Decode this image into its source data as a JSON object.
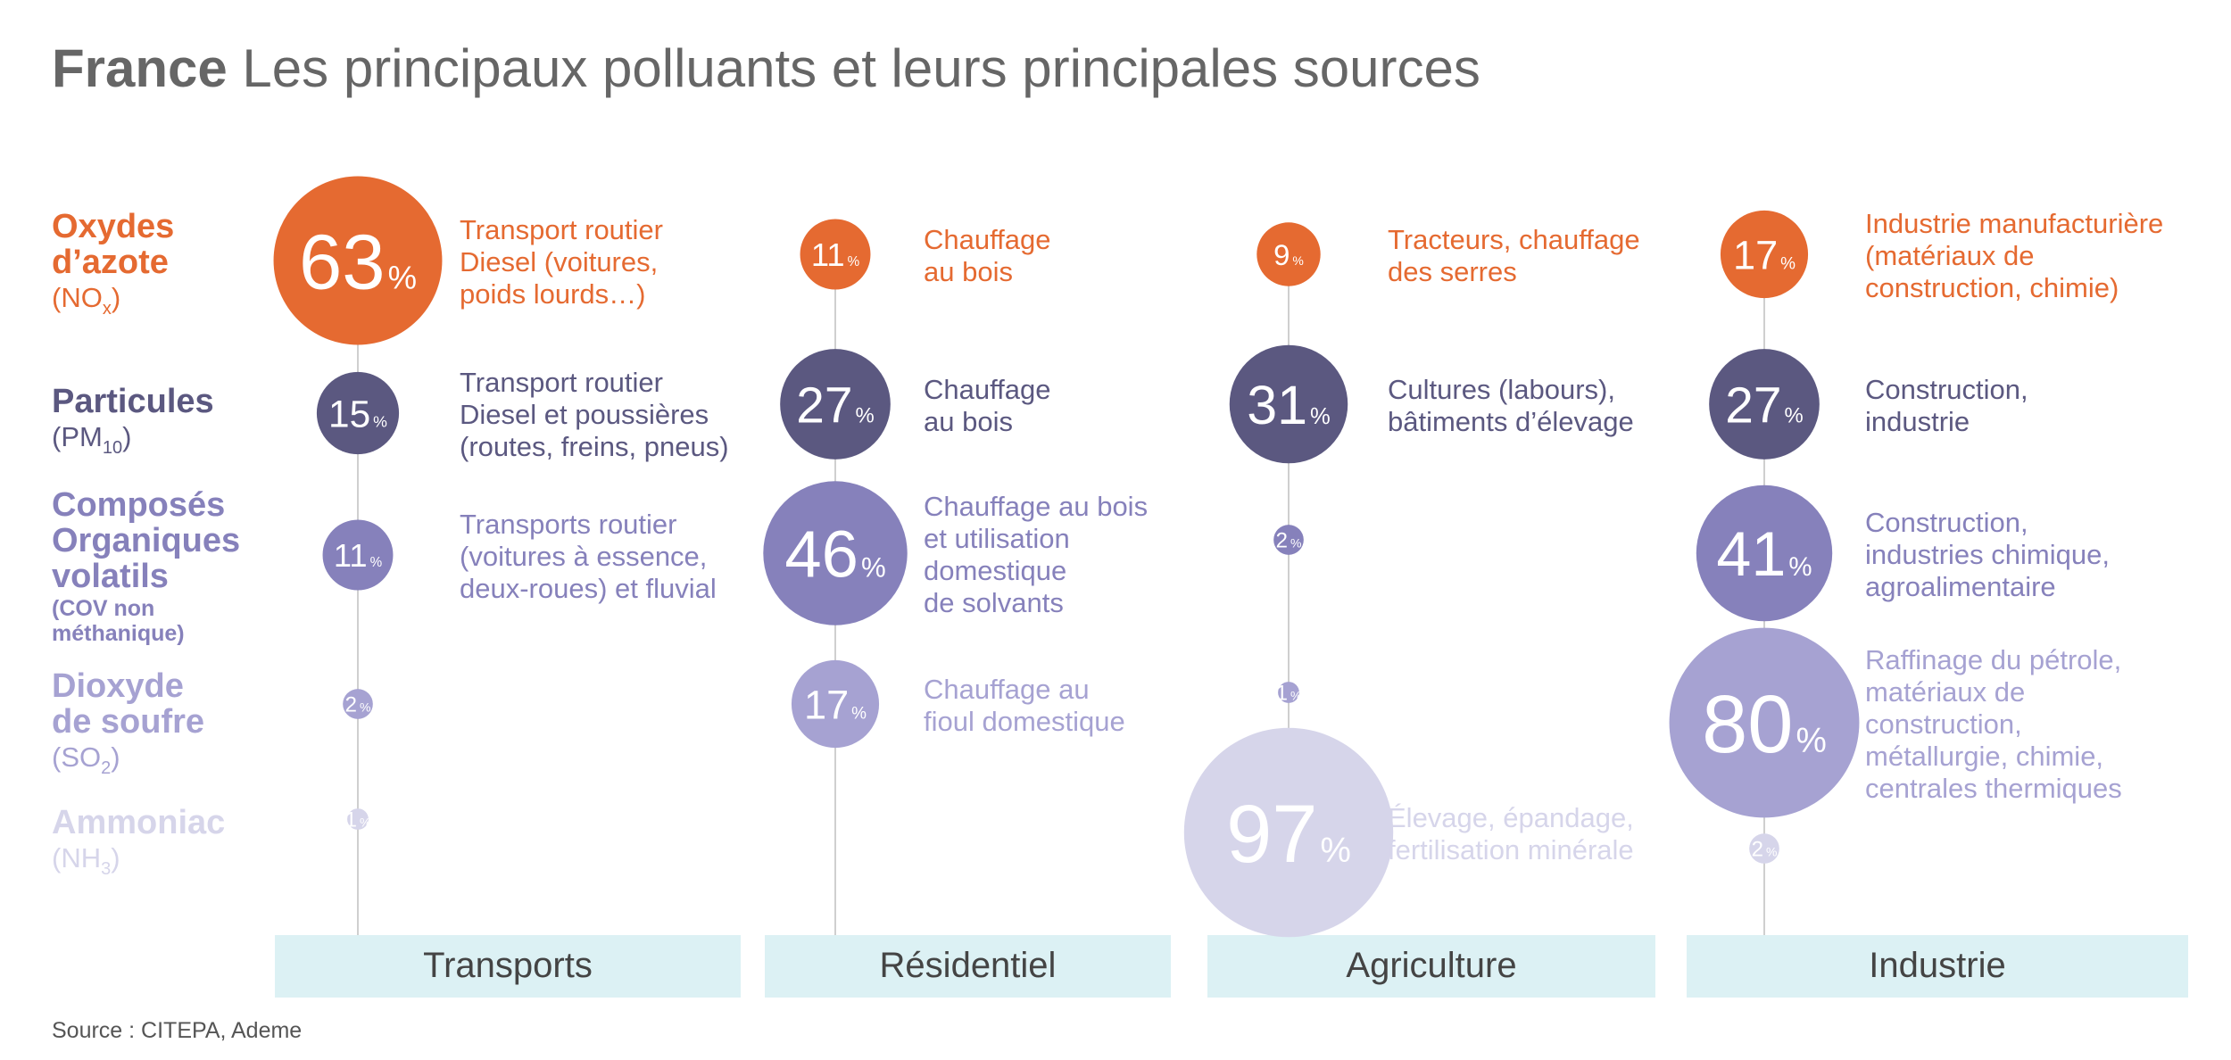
{
  "chart_data": {
    "type": "bubble",
    "title_bold": "France",
    "title": "Les principaux polluants et leurs principales sources",
    "source": "Source : CITEPA, Ademe",
    "colors": {
      "nox": "#e56a31",
      "pm": "#5b5880",
      "cov": "#8681bb",
      "so2": "#a6a2d2",
      "nh3": "#d6d5ea",
      "band": "#dcf1f4",
      "title_gray": "#666666",
      "line": "#cfcfcf"
    },
    "pollutants": [
      {
        "key": "nox",
        "label": [
          "Oxydes",
          "d’azote"
        ],
        "formula": "(NO",
        "sub": "x",
        "formula_end": ")"
      },
      {
        "key": "pm",
        "label": [
          "Particules"
        ],
        "formula": "(PM",
        "sub": "10",
        "formula_end": ")"
      },
      {
        "key": "cov",
        "label": [
          "Composés",
          "Organiques",
          "volatils"
        ],
        "note": [
          "(COV non",
          "méthanique)"
        ]
      },
      {
        "key": "so2",
        "label": [
          "Dioxyde",
          "de soufre"
        ],
        "formula": "(SO",
        "sub": "2",
        "formula_end": ")"
      },
      {
        "key": "nh3",
        "label": [
          "Ammoniac"
        ],
        "formula": "(NH",
        "sub": "3",
        "formula_end": ")"
      }
    ],
    "categories": [
      "Transports",
      "Résidentiel",
      "Agriculture",
      "Industrie"
    ],
    "sectors": [
      {
        "name": "Transports",
        "values": [
          {
            "pollutant": "nox",
            "value": 63,
            "desc": [
              "Transport routier",
              "Diesel (voitures,",
              "poids lourds…)"
            ]
          },
          {
            "pollutant": "pm",
            "value": 15,
            "desc": [
              "Transport routier",
              "Diesel et poussières",
              "(routes, freins, pneus)"
            ]
          },
          {
            "pollutant": "cov",
            "value": 11,
            "desc": [
              "Transports routier",
              "(voitures à essence,",
              "deux-roues) et fluvial"
            ]
          },
          {
            "pollutant": "so2",
            "value": 2,
            "desc": []
          },
          {
            "pollutant": "nh3",
            "value": 1,
            "desc": []
          }
        ]
      },
      {
        "name": "Résidentiel",
        "values": [
          {
            "pollutant": "nox",
            "value": 11,
            "desc": [
              "Chauffage",
              "au bois"
            ]
          },
          {
            "pollutant": "pm",
            "value": 27,
            "desc": [
              "Chauffage",
              "au bois"
            ]
          },
          {
            "pollutant": "cov",
            "value": 46,
            "desc": [
              "Chauffage au bois",
              "et utilisation",
              "domestique",
              "de solvants"
            ]
          },
          {
            "pollutant": "so2",
            "value": 17,
            "desc": [
              "Chauffage au",
              "fioul domestique"
            ]
          }
        ]
      },
      {
        "name": "Agriculture",
        "values": [
          {
            "pollutant": "nox",
            "value": 9,
            "desc": [
              "Tracteurs, chauffage",
              "des serres"
            ]
          },
          {
            "pollutant": "pm",
            "value": 31,
            "desc": [
              "Cultures (labours),",
              "bâtiments d’élevage"
            ]
          },
          {
            "pollutant": "cov",
            "value": 2,
            "desc": []
          },
          {
            "pollutant": "so2",
            "value": 1,
            "desc": []
          },
          {
            "pollutant": "nh3",
            "value": 97,
            "desc": [
              "Élevage, épandage,",
              "fertilisation minérale"
            ]
          }
        ]
      },
      {
        "name": "Industrie",
        "values": [
          {
            "pollutant": "nox",
            "value": 17,
            "desc": [
              "Industrie manufacturière",
              "(matériaux de",
              "construction, chimie)"
            ]
          },
          {
            "pollutant": "pm",
            "value": 27,
            "desc": [
              "Construction,",
              "industrie"
            ]
          },
          {
            "pollutant": "cov",
            "value": 41,
            "desc": [
              "Construction,",
              "industries chimique,",
              "agroalimentaire"
            ]
          },
          {
            "pollutant": "so2",
            "value": 80,
            "desc": [
              "Raffinage du pétrole,",
              "matériaux de",
              "construction,",
              "métallurgie, chimie,",
              "centrales thermiques"
            ]
          },
          {
            "pollutant": "nh3",
            "value": 2,
            "desc": []
          }
        ]
      }
    ],
    "percent_sign": "%"
  }
}
